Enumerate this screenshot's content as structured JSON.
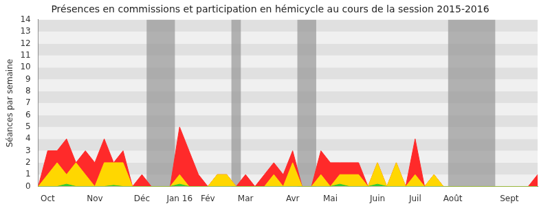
{
  "chart_data": {
    "type": "area",
    "title": "Présences en commissions et participation en hémicycle au cours de la session 2015-2016",
    "y_label": "Séances par semaine",
    "categories": [
      null,
      "Oct",
      null,
      null,
      null,
      null,
      "Nov",
      null,
      null,
      null,
      null,
      "Déc",
      null,
      null,
      null,
      "Jan 16",
      null,
      null,
      "Fév",
      null,
      null,
      null,
      "Mar",
      null,
      null,
      null,
      null,
      "Avr",
      null,
      null,
      null,
      "Mai",
      null,
      null,
      null,
      null,
      "Juin",
      null,
      null,
      null,
      "Juil",
      null,
      null,
      null,
      "Août",
      null,
      null,
      null,
      null,
      null,
      "Sept",
      null,
      null,
      null
    ],
    "series": [
      {
        "color": "#ff2a2a",
        "values": [
          0,
          3,
          3,
          4,
          2,
          3,
          2,
          4,
          2,
          3,
          0,
          1,
          0,
          0,
          0,
          5,
          3,
          1,
          0,
          1,
          1,
          0,
          1,
          0,
          1,
          2,
          1,
          3,
          0,
          0,
          3,
          2,
          2,
          2,
          2,
          0,
          2,
          0,
          2,
          0,
          4,
          0,
          1,
          0,
          0,
          0,
          0,
          0,
          0,
          0,
          0,
          0,
          0,
          1
        ]
      },
      {
        "color": "#ffd700",
        "values": [
          0,
          1,
          2,
          1,
          2,
          1,
          0,
          2,
          2,
          2,
          0,
          0,
          0,
          0,
          0,
          1,
          0,
          0,
          0,
          1,
          1,
          0,
          0,
          0,
          0,
          1,
          0,
          2,
          0,
          0,
          1,
          0,
          1,
          1,
          1,
          0,
          2,
          0,
          2,
          0,
          1,
          0,
          1,
          0,
          0,
          0,
          0,
          0,
          0,
          0,
          0,
          0,
          0,
          0
        ]
      },
      {
        "color": "#33cc33",
        "values": [
          0,
          0,
          0,
          0.2,
          0,
          0,
          0,
          0,
          0.1,
          0,
          0,
          0,
          0,
          0,
          0,
          0.2,
          0,
          0,
          0,
          0,
          0,
          0,
          0,
          0,
          0,
          0,
          0,
          0,
          0,
          0,
          0,
          0,
          0.2,
          0,
          0,
          0,
          0.2,
          0,
          0,
          0,
          0,
          0,
          0,
          0,
          0,
          0,
          0,
          0,
          0,
          0,
          0,
          0,
          0,
          0
        ]
      }
    ],
    "highlight_ranges": [
      [
        11.5,
        14.5
      ],
      [
        20.5,
        21.5
      ],
      [
        27.5,
        29.5
      ],
      [
        43.5,
        48.5
      ]
    ],
    "ylim": [
      0,
      14
    ],
    "yticks": [
      0,
      1,
      2,
      3,
      4,
      5,
      6,
      7,
      8,
      9,
      10,
      11,
      12,
      13,
      14
    ],
    "grid": true
  }
}
